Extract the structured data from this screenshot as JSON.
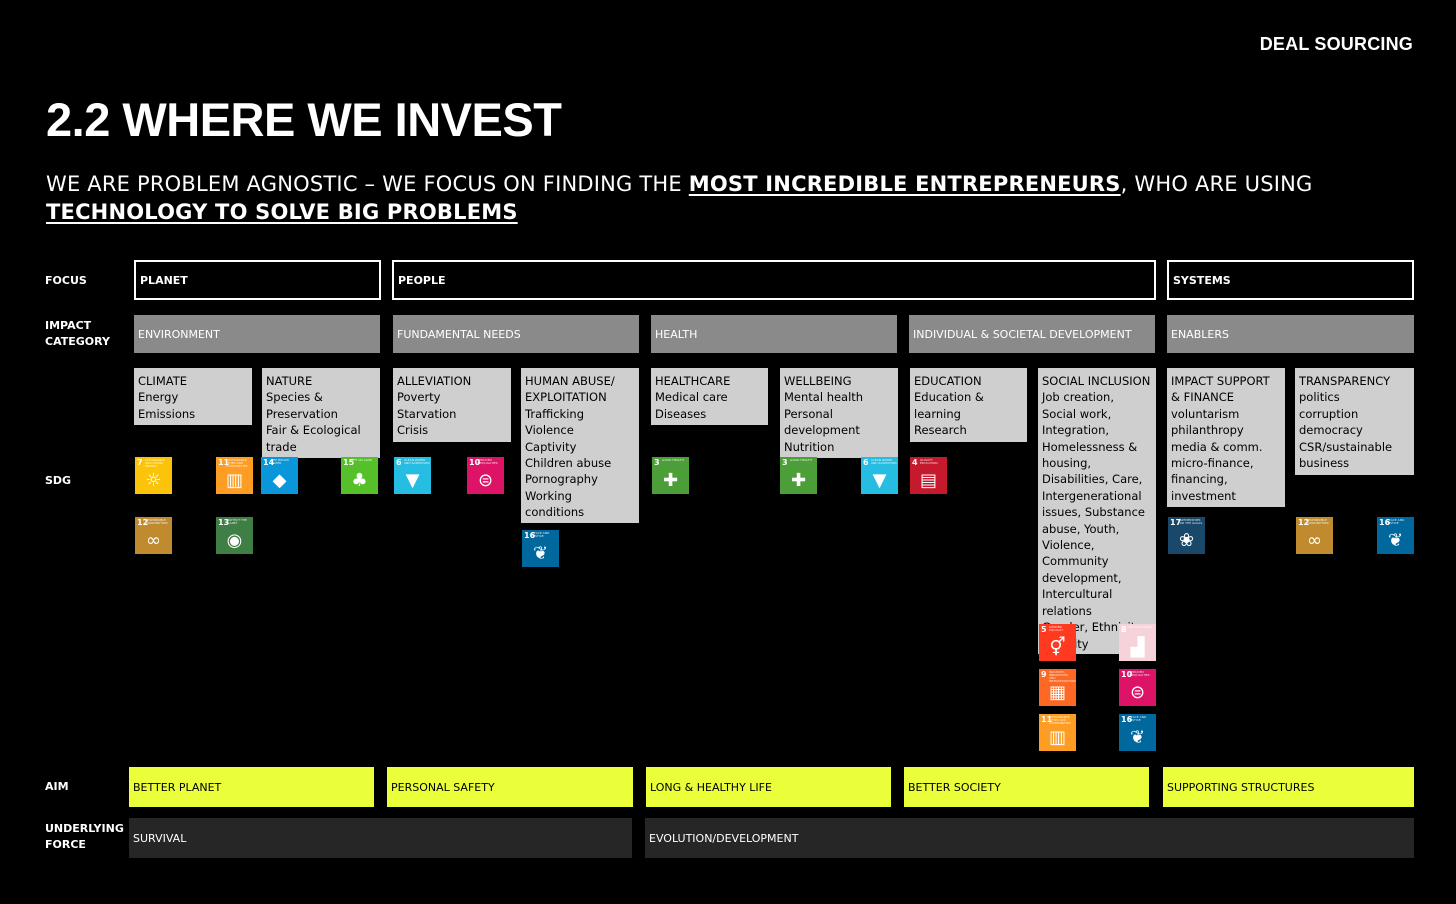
{
  "header": {
    "section": "DEAL SOURCING",
    "title": "2.2 WHERE WE INVEST",
    "subtitle_part1": "WE ARE PROBLEM AGNOSTIC – WE FOCUS ON FINDING THE ",
    "subtitle_em1": "MOST INCREDIBLE ENTREPRENEURS",
    "subtitle_part2": ", WHO ARE USING ",
    "subtitle_em2": "TECHNOLOGY TO SOLVE BIG PROBLEMS"
  },
  "row_labels": {
    "focus": "FOCUS",
    "impact_category_1": "IMPACT",
    "impact_category_2": "CATEGORY",
    "sdg": "SDG",
    "aim": "AIM",
    "underlying_force_1": "UNDERLYING",
    "underlying_force_2": "FORCE"
  },
  "focus": [
    "PLANET",
    "PEOPLE",
    "SYSTEMS"
  ],
  "impact_categories": [
    "ENVIRONMENT",
    "FUNDAMENTAL NEEDS",
    "HEALTH",
    "INDIVIDUAL & SOCIETAL DEVELOPMENT",
    "ENABLERS"
  ],
  "subcategories": [
    {
      "lines": [
        "CLIMATE",
        "Energy",
        "Emissions"
      ]
    },
    {
      "lines": [
        "NATURE",
        "Species &",
        "Preservation",
        "Fair & Ecological",
        "trade"
      ]
    },
    {
      "lines": [
        "ALLEVIATION",
        "Poverty",
        "Starvation",
        "Crisis"
      ]
    },
    {
      "lines": [
        "HUMAN ABUSE/",
        "EXPLOITATION",
        "Trafficking",
        "Violence",
        "Captivity",
        "Children abuse",
        "Pornography",
        "Working",
        "conditions"
      ]
    },
    {
      "lines": [
        "HEALTHCARE",
        "Medical care",
        "Diseases"
      ]
    },
    {
      "lines": [
        "WELLBEING",
        "Mental health",
        "Personal",
        "development",
        "Nutrition"
      ]
    },
    {
      "lines": [
        "EDUCATION",
        "Education &",
        "learning",
        "Research"
      ]
    },
    {
      "lines": [
        "SOCIAL INCLUSION",
        "Job creation,",
        "Social work,",
        "Integration,",
        "Homelessness &",
        "housing,",
        "Disabilities, Care,",
        "Intergenerational",
        "issues, Substance",
        "abuse, Youth,",
        "Violence,",
        "Community",
        "development,",
        "Intercultural",
        "relations",
        "Gender, Ethnicity,",
        "Equality"
      ]
    },
    {
      "lines": [
        "IMPACT SUPPORT",
        "& FINANCE",
        "voluntarism",
        "philanthropy",
        "media & comm.",
        "micro-finance,",
        "financing,",
        "investment"
      ]
    },
    {
      "lines": [
        "TRANSPARENCY",
        "politics",
        "corruption",
        "democracy",
        "CSR/sustainable",
        "business"
      ]
    }
  ],
  "sdg_icons": [
    {
      "num": "7",
      "label": "AFFORDABLE AND CLEAN ENERGY",
      "color": "#FCC30B",
      "icon": "sun-icon",
      "glyph": "☼"
    },
    {
      "num": "11",
      "label": "SUSTAINABLE CITIES AND COMMUNITIES",
      "color": "#FD9D24",
      "icon": "city-icon",
      "glyph": "▥"
    },
    {
      "num": "14",
      "label": "LIFE BELOW WATER",
      "color": "#0A97D9",
      "icon": "fish-icon",
      "glyph": "◆"
    },
    {
      "num": "15",
      "label": "LIFE ON LAND",
      "color": "#56C02B",
      "icon": "tree-icon",
      "glyph": "♣"
    },
    {
      "num": "12",
      "label": "RESPONSIBLE CONSUMPTION",
      "color": "#BF8B2E",
      "icon": "infinity-icon",
      "glyph": "∞"
    },
    {
      "num": "13",
      "label": "PROTECT THE PLANET",
      "color": "#3F7E44",
      "icon": "eye-icon",
      "glyph": "◉"
    },
    {
      "num": "6",
      "label": "CLEAN WATER AND SANITATION",
      "color": "#26BDE2",
      "icon": "water-drop-icon",
      "glyph": "▼"
    },
    {
      "num": "10",
      "label": "REDUCED INEQUALITIES",
      "color": "#DD1367",
      "icon": "equal-icon",
      "glyph": "⊜"
    },
    {
      "num": "16",
      "label": "PEACE AND JUSTICE",
      "color": "#00689D",
      "icon": "dove-icon",
      "glyph": "❦"
    },
    {
      "num": "3",
      "label": "GOOD HEALTH",
      "color": "#4C9F38",
      "icon": "health-icon",
      "glyph": "✚"
    },
    {
      "num": "3",
      "label": "GOOD HEALTH",
      "color": "#4C9F38",
      "icon": "health-icon",
      "glyph": "✚"
    },
    {
      "num": "6",
      "label": "CLEAN WATER AND SANITATION",
      "color": "#26BDE2",
      "icon": "water-drop-icon",
      "glyph": "▼"
    },
    {
      "num": "4",
      "label": "QUALITY EDUCATION",
      "color": "#C5192D",
      "icon": "book-icon",
      "glyph": "▤"
    },
    {
      "num": "5",
      "label": "GENDER EQUALITY",
      "color": "#FF3A21",
      "icon": "gender-icon",
      "glyph": "⚥"
    },
    {
      "num": "8",
      "label": "DECENT WORK",
      "color": "#F6D3DB",
      "icon": "growth-icon",
      "glyph": "▟"
    },
    {
      "num": "9",
      "label": "INDUSTRY, INNOVATION AND INFRASTRUCTURE",
      "color": "#FD6925",
      "icon": "blocks-icon",
      "glyph": "▦"
    },
    {
      "num": "10",
      "label": "REDUCED INEQUALITIES",
      "color": "#DD1367",
      "icon": "equal-icon",
      "glyph": "⊜"
    },
    {
      "num": "11",
      "label": "SUSTAINABLE CITIES AND COMMUNITIES",
      "color": "#FD9D24",
      "icon": "city-icon",
      "glyph": "▥"
    },
    {
      "num": "16",
      "label": "PEACE AND JUSTICE",
      "color": "#00689D",
      "icon": "dove-icon",
      "glyph": "❦"
    },
    {
      "num": "17",
      "label": "PARTNERSHIPS FOR THE GOALS",
      "color": "#19486A",
      "icon": "partnership-icon",
      "glyph": "❀"
    },
    {
      "num": "12",
      "label": "RESPONSIBLE CONSUMPTION",
      "color": "#BF8B2E",
      "icon": "infinity-icon",
      "glyph": "∞"
    },
    {
      "num": "16",
      "label": "PEACE AND JUSTICE",
      "color": "#00689D",
      "icon": "dove-icon",
      "glyph": "❦"
    }
  ],
  "aims": [
    "BETTER PLANET",
    "PERSONAL SAFETY",
    "LONG & HEALTHY LIFE",
    "BETTER SOCIETY",
    "SUPPORTING STRUCTURES"
  ],
  "underlying_forces": [
    "SURVIVAL",
    "EVOLUTION/DEVELOPMENT"
  ]
}
